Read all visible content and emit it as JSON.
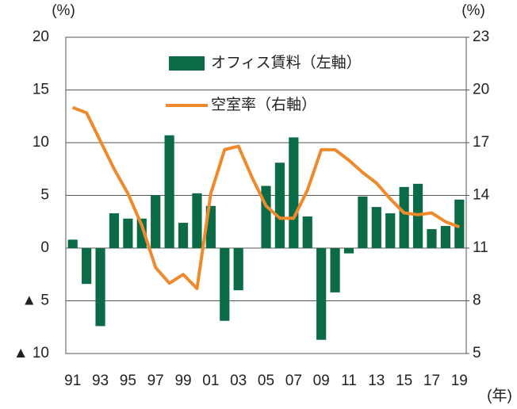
{
  "chart_data": {
    "type": "bar_line",
    "y_unit": "(%)",
    "y2_unit": "(%)",
    "x_unit": "(年)",
    "categories": [
      "91",
      null,
      "93",
      null,
      "95",
      null,
      "97",
      null,
      "99",
      null,
      "01",
      null,
      "03",
      null,
      "05",
      null,
      "07",
      null,
      "09",
      null,
      "11",
      null,
      "13",
      null,
      "15",
      null,
      "17",
      null,
      "19"
    ],
    "series": [
      {
        "name": "オフィス賃料（左軸）",
        "type": "bar",
        "color": "#0b6b47",
        "values": [
          0.8,
          -3.4,
          -7.4,
          3.3,
          2.8,
          2.8,
          5.0,
          10.7,
          2.4,
          5.2,
          4.0,
          -6.9,
          -4.0,
          0,
          5.9,
          8.1,
          10.5,
          3.0,
          -8.7,
          -4.2,
          -0.5,
          4.9,
          3.9,
          3.3,
          5.8,
          6.1,
          1.8,
          2.1,
          4.6
        ]
      },
      {
        "name": "空室率（右軸）",
        "type": "line",
        "axis": "y2",
        "color": "#ee8a2c",
        "values": [
          19.0,
          18.7,
          17.1,
          15.5,
          14.1,
          12.3,
          9.9,
          9.0,
          9.5,
          8.7,
          14.1,
          16.6,
          16.8,
          15.0,
          13.4,
          12.7,
          12.7,
          14.3,
          16.6,
          16.6,
          16.0,
          15.3,
          14.7,
          13.8,
          13.0,
          12.9,
          13.0,
          12.5,
          12.2
        ]
      }
    ],
    "ylim": [
      -10,
      20
    ],
    "yticks": [
      {
        "value": -10,
        "label": "▲ 10"
      },
      {
        "value": -5,
        "label": "▲ 5"
      },
      0,
      5,
      10,
      15,
      20
    ],
    "y2lim": [
      5,
      23
    ],
    "y2ticks": [
      5,
      8,
      11,
      14,
      17,
      20,
      23
    ],
    "grid": true
  }
}
